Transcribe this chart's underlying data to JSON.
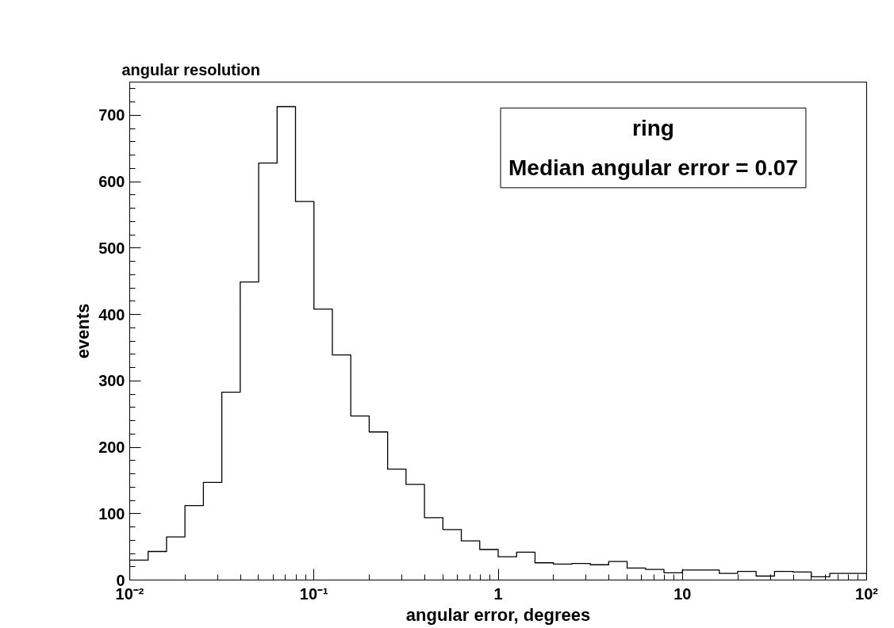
{
  "chart_data": {
    "type": "histogram",
    "title": "angular resolution",
    "xlabel": "angular error, degrees",
    "ylabel": "events",
    "annotations": [
      "ring",
      "Median angular error = 0.07"
    ],
    "bins": [
      0.01,
      0.01259,
      0.01585,
      0.01995,
      0.02512,
      0.03162,
      0.03981,
      0.05012,
      0.0631,
      0.07943,
      0.1,
      0.1259,
      0.1585,
      0.1995,
      0.2512,
      0.3162,
      0.3981,
      0.5012,
      0.631,
      0.7943,
      1,
      1.259,
      1.585,
      1.995,
      2.512,
      3.162,
      3.981,
      5.012,
      6.31,
      7.943,
      10,
      12.59,
      15.85,
      19.95,
      25.12,
      31.62,
      39.81,
      50.12,
      63.1,
      79.43,
      100
    ],
    "values": [
      30,
      43,
      65,
      112,
      147,
      283,
      449,
      628,
      713,
      570,
      408,
      339,
      247,
      223,
      167,
      144,
      94,
      76,
      59,
      46,
      35,
      42,
      26,
      24,
      25,
      23,
      28,
      18,
      16,
      11,
      15,
      15,
      10,
      13,
      6,
      13,
      12,
      5,
      10,
      10
    ],
    "color": "#000000",
    "log": "x",
    "xlim": [
      0.01,
      100
    ],
    "xticks": [
      {
        "value": 0.01,
        "label": "10⁻²"
      },
      {
        "value": 0.1,
        "label": "10⁻¹"
      },
      1,
      10,
      {
        "value": 100,
        "label": "10²"
      }
    ],
    "ylim": [
      0,
      750
    ],
    "yticks": [
      0,
      100,
      200,
      300,
      400,
      500,
      600,
      700
    ],
    "grid": false
  }
}
